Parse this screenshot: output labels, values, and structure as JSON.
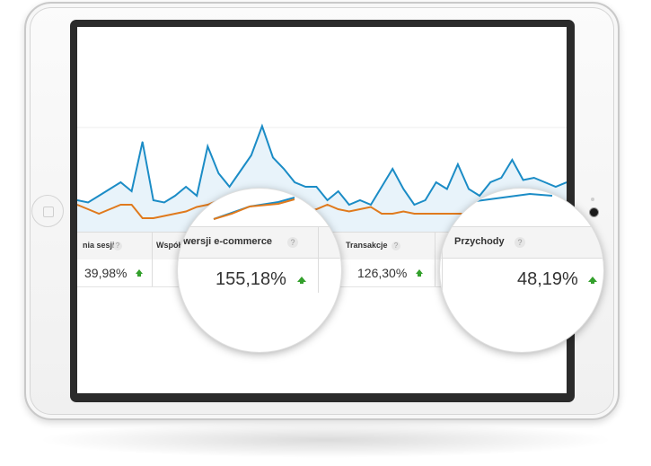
{
  "report": {
    "columns": [
      {
        "header": "nia sesji",
        "value": "39,98%",
        "trend": "up"
      },
      {
        "header": "Współ",
        "value": "",
        "trend": "none"
      },
      {
        "header": "wersji e-commerce",
        "value": "155,18%",
        "trend": "up"
      },
      {
        "header": "Transakcje",
        "value": "126,30%",
        "trend": "up"
      },
      {
        "header": "Przychody",
        "value": "48,19%",
        "trend": "up"
      }
    ],
    "help_glyph": "?"
  },
  "colors": {
    "line_primary": "#1b8cc6",
    "area_primary": "#e8f3fa",
    "line_secondary": "#e07a1d",
    "trend_up": "#33a02c"
  },
  "icons": {
    "trend": "arrow-up-icon",
    "help": "question-mark-icon"
  },
  "chart_data": {
    "type": "line",
    "series": [
      {
        "values": [
          7,
          6.5,
          8,
          9.5,
          11,
          9,
          20,
          7,
          6.5,
          8,
          10,
          8,
          19,
          13,
          10,
          13.5,
          17,
          23.5,
          16.5,
          14,
          11,
          10,
          10,
          7,
          9,
          6,
          7,
          6,
          10,
          14,
          9.5,
          6,
          7,
          11,
          9.5,
          15,
          9.5,
          8,
          11,
          12,
          16,
          11.5,
          12,
          11,
          10,
          11
        ]
      },
      {
        "values": [
          6,
          5,
          4,
          5,
          6,
          6,
          3,
          3,
          3.5,
          4,
          4.5,
          5.5,
          6,
          7,
          8,
          8.5,
          7.5,
          6,
          5,
          4,
          4,
          4.5,
          5,
          6,
          5,
          4.5,
          5,
          5.5,
          4,
          4,
          4.5,
          4,
          4,
          4,
          4,
          4,
          4,
          5,
          4,
          4,
          4,
          4,
          4,
          4,
          4,
          4
        ]
      }
    ]
  }
}
